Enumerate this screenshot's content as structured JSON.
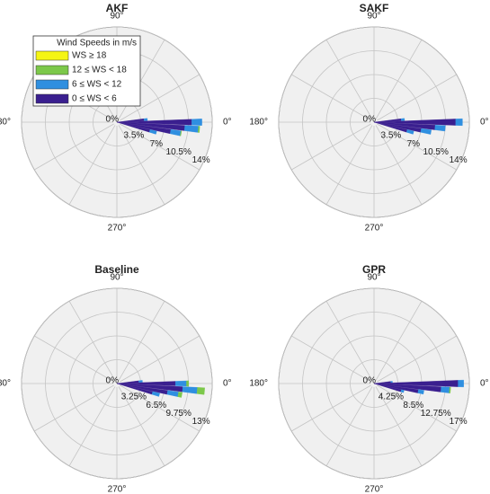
{
  "chart_data": [
    {
      "type": "windrose",
      "title": "AKF",
      "directions": [
        5,
        0,
        -5,
        -10,
        -15
      ],
      "sector_width": 5,
      "rlim": [
        0,
        14
      ],
      "rticks": [
        {
          "value": 0,
          "label": "0%"
        },
        {
          "value": 3.5,
          "label": "3.5%"
        },
        {
          "value": 7,
          "label": "7%"
        },
        {
          "value": 10.5,
          "label": "10.5%"
        },
        {
          "value": 14,
          "label": "14%"
        }
      ],
      "theta_grid": [
        0,
        30,
        60,
        90,
        120,
        150,
        180,
        210,
        240,
        270,
        300,
        330
      ],
      "thetaticks": [
        {
          "value": 90,
          "label": "90°"
        },
        {
          "value": 180,
          "label": "180°"
        },
        {
          "value": 270,
          "label": "270°"
        },
        {
          "value": 0,
          "label": "0°"
        }
      ],
      "legend": "upper left",
      "legend_title": "Wind Speeds in m/s",
      "series": [
        {
          "name": "0 ≤ WS < 6",
          "color": "#3a1f8f",
          "values": [
            4,
            11,
            10,
            8,
            5
          ]
        },
        {
          "name": "6 ≤ WS < 12",
          "color": "#2f8fe0",
          "values": [
            0.5,
            1.5,
            2,
            1.5,
            1
          ]
        },
        {
          "name": "12 ≤ WS < 18",
          "color": "#7cc84a",
          "values": [
            0,
            0,
            0.2,
            0.1,
            0
          ]
        },
        {
          "name": "WS ≥ 18",
          "color": "#f5f514",
          "values": [
            0,
            0,
            0,
            0,
            0
          ]
        }
      ]
    },
    {
      "type": "windrose",
      "title": "SAKF",
      "directions": [
        5,
        0,
        -5,
        -10,
        -15
      ],
      "sector_width": 5,
      "rlim": [
        0,
        14
      ],
      "rticks": [
        {
          "value": 0,
          "label": "0%"
        },
        {
          "value": 3.5,
          "label": "3.5%"
        },
        {
          "value": 7,
          "label": "7%"
        },
        {
          "value": 10.5,
          "label": "10.5%"
        },
        {
          "value": 14,
          "label": "14%"
        }
      ],
      "theta_grid": [
        0,
        30,
        60,
        90,
        120,
        150,
        180,
        210,
        240,
        270,
        300,
        330
      ],
      "thetaticks": [
        {
          "value": 90,
          "label": "90°"
        },
        {
          "value": 180,
          "label": "180°"
        },
        {
          "value": 270,
          "label": "270°"
        },
        {
          "value": 0,
          "label": "0°"
        }
      ],
      "series": [
        {
          "color": "#3a1f8f",
          "values": [
            4,
            12,
            9,
            7,
            5
          ]
        },
        {
          "color": "#2f8fe0",
          "values": [
            0.5,
            1,
            1.5,
            1.5,
            1
          ]
        },
        {
          "color": "#7cc84a",
          "values": [
            0,
            0,
            0,
            0,
            0
          ]
        },
        {
          "color": "#f5f514",
          "values": [
            0,
            0,
            0,
            0,
            0
          ]
        }
      ]
    },
    {
      "type": "windrose",
      "title": "Baseline",
      "directions": [
        5,
        0,
        -5,
        -10,
        -15
      ],
      "sector_width": 5,
      "rlim": [
        0,
        13
      ],
      "rticks": [
        {
          "value": 0,
          "label": "0%"
        },
        {
          "value": 3.25,
          "label": "3.25%"
        },
        {
          "value": 6.5,
          "label": "6.5%"
        },
        {
          "value": 9.75,
          "label": "9.75%"
        },
        {
          "value": 13,
          "label": "13%"
        }
      ],
      "theta_grid": [
        0,
        30,
        60,
        90,
        120,
        150,
        180,
        210,
        240,
        270,
        300,
        330
      ],
      "thetaticks": [
        {
          "value": 90,
          "label": "90°"
        },
        {
          "value": 180,
          "label": "180°"
        },
        {
          "value": 270,
          "label": "270°"
        },
        {
          "value": 0,
          "label": "0°"
        }
      ],
      "series": [
        {
          "color": "#3a1f8f",
          "values": [
            3,
            8,
            9,
            7,
            5
          ]
        },
        {
          "color": "#2f8fe0",
          "values": [
            0.5,
            1.5,
            2,
            1.5,
            1
          ]
        },
        {
          "color": "#7cc84a",
          "values": [
            0,
            0.3,
            1,
            0.5,
            0
          ]
        },
        {
          "color": "#f5f514",
          "values": [
            0,
            0,
            0,
            0,
            0
          ]
        }
      ]
    },
    {
      "type": "windrose",
      "title": "GPR",
      "directions": [
        5,
        0,
        -5,
        -10,
        -15
      ],
      "sector_width": 5,
      "rlim": [
        0,
        17
      ],
      "rticks": [
        {
          "value": 0,
          "label": "0%"
        },
        {
          "value": 4.25,
          "label": "4.25%"
        },
        {
          "value": 8.5,
          "label": "8.5%"
        },
        {
          "value": 12.75,
          "label": "12.75%"
        },
        {
          "value": 17,
          "label": "17%"
        }
      ],
      "theta_grid": [
        0,
        30,
        60,
        90,
        120,
        150,
        180,
        210,
        240,
        270,
        300,
        330
      ],
      "thetaticks": [
        {
          "value": 90,
          "label": "90°"
        },
        {
          "value": 180,
          "label": "180°"
        },
        {
          "value": 270,
          "label": "270°"
        },
        {
          "value": 0,
          "label": "0°"
        }
      ],
      "series": [
        {
          "color": "#3a1f8f",
          "values": [
            3,
            15,
            12,
            8,
            5
          ]
        },
        {
          "color": "#2f8fe0",
          "values": [
            0.3,
            1,
            1.5,
            1,
            0.5
          ]
        },
        {
          "color": "#7cc84a",
          "values": [
            0,
            0,
            0.2,
            0,
            0
          ]
        },
        {
          "color": "#f5f514",
          "values": [
            0,
            0,
            0,
            0,
            0
          ]
        }
      ]
    }
  ]
}
